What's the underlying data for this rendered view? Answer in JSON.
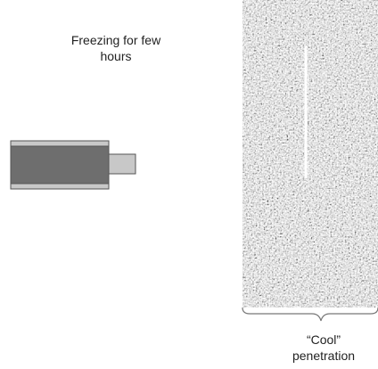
{
  "labels": {
    "process": "Freezing for few hours",
    "result": "“Cool” penetration"
  }
}
